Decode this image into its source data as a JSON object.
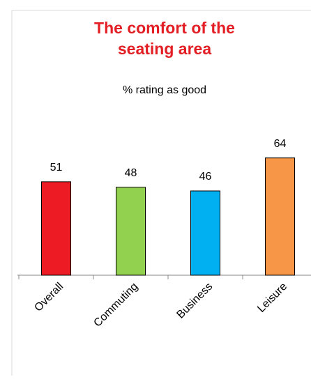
{
  "chart_data": {
    "type": "bar",
    "title": [
      "The comfort of the",
      "seating area"
    ],
    "subtitle": "% rating as good",
    "categories": [
      "Overall",
      "Commuting",
      "Business",
      "Leisure"
    ],
    "values": [
      51,
      48,
      46,
      64
    ],
    "colors": [
      "#ed1c24",
      "#92d050",
      "#00b0f0",
      "#f79646"
    ],
    "grid": false
  }
}
